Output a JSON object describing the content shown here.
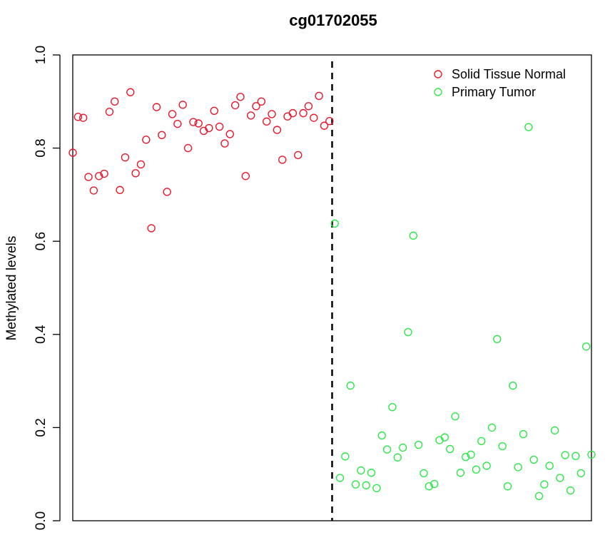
{
  "chart_data": {
    "type": "scatter",
    "title": "cg01702055",
    "xlabel": "",
    "ylabel": "Methylated levels",
    "ylim": [
      0,
      1
    ],
    "y_ticks": [
      "0.0",
      "0.2",
      "0.4",
      "0.6",
      "0.8",
      "1.0"
    ],
    "grid": false,
    "legend_position": "top-right",
    "divider_x": 50.5,
    "series": [
      {
        "name": "Solid Tissue Normal",
        "color": "#e8192c",
        "x": [
          1,
          2,
          3,
          4,
          5,
          6,
          7,
          8,
          9,
          10,
          11,
          12,
          13,
          14,
          15,
          16,
          17,
          18,
          19,
          20,
          21,
          22,
          23,
          24,
          25,
          26,
          27,
          28,
          29,
          30,
          31,
          32,
          33,
          34,
          35,
          36,
          37,
          38,
          39,
          40,
          41,
          42,
          43,
          44,
          45,
          46,
          47,
          48,
          49,
          50
        ],
        "values": [
          0.79,
          0.867,
          0.865,
          0.738,
          0.709,
          0.74,
          0.745,
          0.878,
          0.9,
          0.71,
          0.78,
          0.92,
          0.746,
          0.765,
          0.818,
          0.628,
          0.888,
          0.828,
          0.706,
          0.873,
          0.852,
          0.893,
          0.8,
          0.856,
          0.853,
          0.837,
          0.843,
          0.88,
          0.846,
          0.81,
          0.83,
          0.892,
          0.91,
          0.74,
          0.87,
          0.89,
          0.9,
          0.857,
          0.873,
          0.839,
          0.775,
          0.868,
          0.875,
          0.785,
          0.875,
          0.89,
          0.865,
          0.912,
          0.848,
          0.858
        ]
      },
      {
        "name": "Primary Tumor",
        "color": "#2ee84a",
        "x": [
          51,
          52,
          53,
          54,
          55,
          56,
          57,
          58,
          59,
          60,
          61,
          62,
          63,
          64,
          65,
          66,
          67,
          68,
          69,
          70,
          71,
          72,
          73,
          74,
          75,
          76,
          77,
          78,
          79,
          80,
          81,
          82,
          83,
          84,
          85,
          86,
          87,
          88,
          89,
          90,
          91,
          92,
          93,
          94,
          95,
          96,
          97,
          98,
          99,
          100
        ],
        "values": [
          0.638,
          0.092,
          0.138,
          0.29,
          0.078,
          0.108,
          0.076,
          0.103,
          0.07,
          0.183,
          0.153,
          0.244,
          0.136,
          0.157,
          0.405,
          0.612,
          0.163,
          0.102,
          0.074,
          0.079,
          0.173,
          0.179,
          0.154,
          0.224,
          0.103,
          0.137,
          0.142,
          0.11,
          0.171,
          0.118,
          0.2,
          0.39,
          0.16,
          0.074,
          0.29,
          0.115,
          0.186,
          0.845,
          0.131,
          0.053,
          0.078,
          0.118,
          0.194,
          0.092,
          0.141,
          0.065,
          0.139,
          0.102,
          0.374,
          0.142
        ]
      }
    ]
  }
}
